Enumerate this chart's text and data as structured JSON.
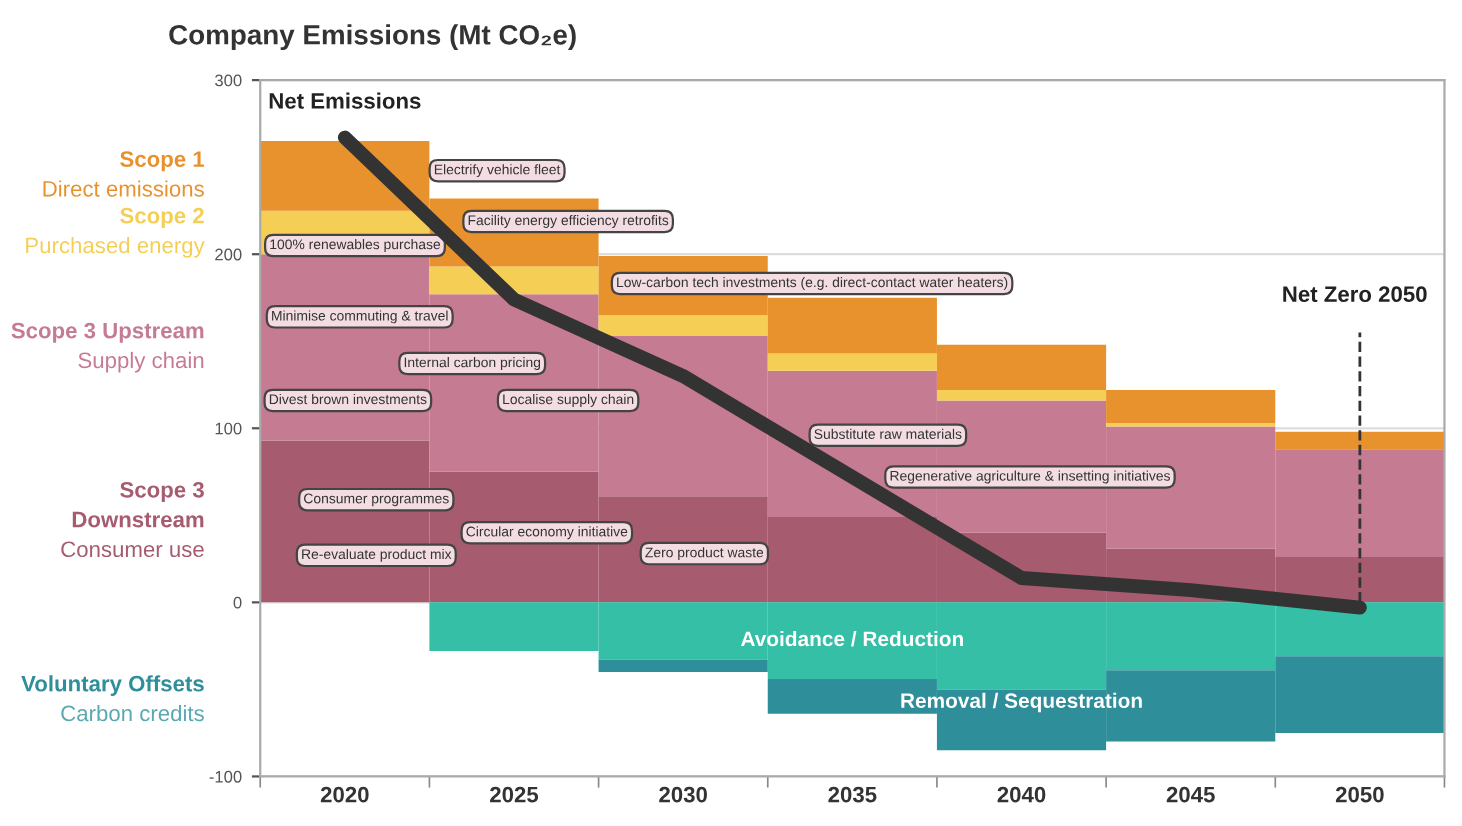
{
  "chart_data": {
    "type": "bar",
    "stacked": true,
    "title": "Company Emissions (Mt CO₂e)",
    "x": [
      2020,
      2025,
      2030,
      2035,
      2040,
      2045,
      2050
    ],
    "xlim": [
      2017.5,
      2052.5
    ],
    "xticks": [
      {
        "value": 2017.5,
        "label": null
      },
      2020,
      {
        "value": 2022.5,
        "label": null
      },
      2025,
      {
        "value": 2027.5,
        "label": null
      },
      2030,
      {
        "value": 2032.5,
        "label": null
      },
      2035,
      {
        "value": 2037.5,
        "label": null
      },
      2040,
      {
        "value": 2042.5,
        "label": null
      },
      2045,
      {
        "value": 2047.5,
        "label": null
      },
      2050,
      {
        "value": 2052.5,
        "label": null
      }
    ],
    "ylim": [
      -100,
      300
    ],
    "yticks": [
      -100,
      0,
      100,
      200,
      300
    ],
    "grid": "y",
    "series": [
      {
        "name": "Scope 3\nDownstream\nConsumer use",
        "color": "#a65b6e",
        "values": [
          93,
          75,
          61,
          49,
          40,
          31,
          26
        ]
      },
      {
        "name": "Scope 3 Upstream\nSupply chain",
        "color": "#c57b92",
        "values": [
          107,
          102,
          92,
          84,
          76,
          70,
          62
        ]
      },
      {
        "name": "Scope 2\nPurchased energy",
        "color": "#f5cf55",
        "values": [
          25,
          16,
          12,
          10,
          6,
          2,
          0
        ]
      },
      {
        "name": "Scope 1\nDirect emissions",
        "color": "#e8922e",
        "values": [
          40,
          39,
          34,
          32,
          26,
          19,
          10
        ]
      },
      {
        "name": "Avoidance / Reduction",
        "color": "#35bfa6",
        "values": [
          0,
          -28,
          -33,
          -44,
          -50,
          -39,
          -31
        ]
      },
      {
        "name": "Removal / Sequestration",
        "color": "#2e8e9a",
        "values": [
          0,
          0,
          -7,
          -20,
          -35,
          -41,
          -44
        ]
      },
      {
        "name": "Net Emissions",
        "type": "line",
        "color": "#333333",
        "values": [
          267,
          174,
          130,
          72,
          14,
          7,
          -3
        ]
      }
    ],
    "ref_lines": [
      {
        "axis": "x",
        "value": 2050,
        "label": "Net Zero 2050",
        "line_style": "dashed",
        "color": "#333333"
      }
    ],
    "annotations": [
      "Electrify vehicle fleet",
      "100% renewables purchase",
      "Facility energy efficiency retrofits",
      "Low-carbon tech investments (e.g. direct-contact water heaters)",
      "Minimise commuting & travel",
      "Internal carbon pricing",
      "Divest brown investments",
      "Localise supply chain",
      "Substitute raw materials",
      "Regenerative agriculture & insetting initiatives",
      "Consumer programmes",
      "Circular economy initiative",
      "Re-evaluate product mix",
      "Zero product waste",
      "Voluntary Offsets\nCarbon credits"
    ]
  }
}
